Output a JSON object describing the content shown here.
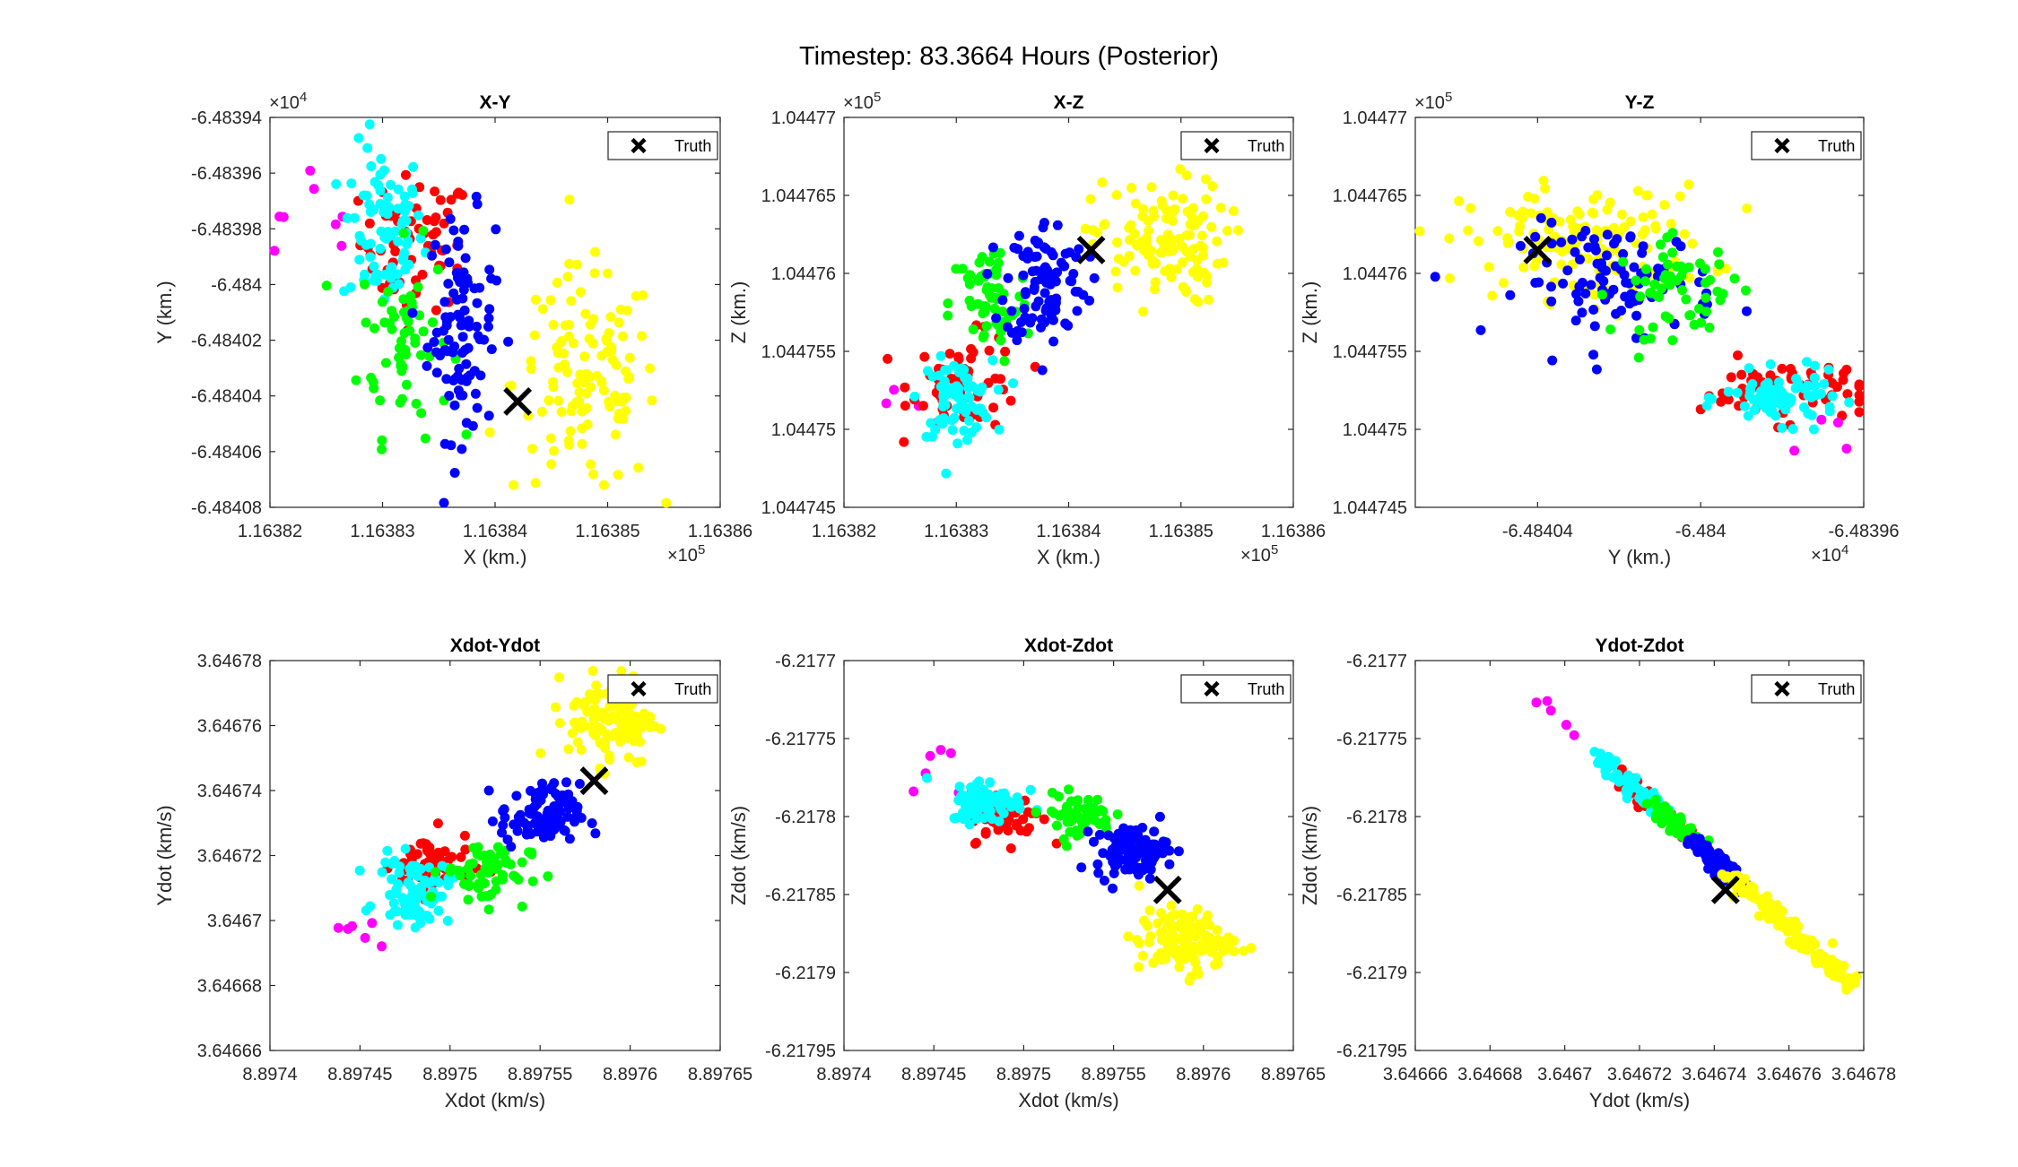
{
  "suptitle": "Timestep: 83.3664 Hours (Posterior)",
  "legend_label": "Truth",
  "cluster_colors": {
    "magenta": "#ff00ff",
    "cyan": "#00ffff",
    "red": "#ff0000",
    "green": "#00ff00",
    "blue": "#0000ff",
    "yellow": "#ffff00",
    "truth": "#000000"
  },
  "chart_data": [
    {
      "type": "scatter",
      "title": "X-Y",
      "xlabel": "X (km.)",
      "ylabel": "Y (km.)",
      "xlim": [
        116382,
        116386
      ],
      "ylim": [
        -64840.8,
        -64839.4
      ],
      "xticks": [
        "1.16382",
        "1.16383",
        "1.16384",
        "1.16385",
        "1.16386"
      ],
      "yticks": [
        "-6.48394",
        "-6.48396",
        "-6.48398",
        "-6.484",
        "-6.48402",
        "-6.48404",
        "-6.48406",
        "-6.48408"
      ],
      "x_exponent": "10^5",
      "y_exponent": "10^4",
      "legend": "top-right",
      "truth": [
        116384.2,
        -64840.42
      ],
      "clusters": [
        {
          "color": "magenta",
          "cx": 116382.5,
          "cy": -64839.8,
          "sx": 0.35,
          "sy": 0.15,
          "n": 8,
          "shape": "gauss"
        },
        {
          "color": "red",
          "cx": 116383.3,
          "cy": -64839.85,
          "sx": 0.25,
          "sy": 0.12,
          "n": 60,
          "shape": "gauss"
        },
        {
          "color": "cyan",
          "cx": 116383.0,
          "cy": -64839.8,
          "sx": 0.18,
          "sy": 0.15,
          "n": 80,
          "shape": "gauss"
        },
        {
          "color": "green",
          "cx": 116383.2,
          "cy": -64840.2,
          "sx": 0.2,
          "sy": 0.17,
          "n": 60,
          "shape": "gauss"
        },
        {
          "color": "blue",
          "cx": 116383.7,
          "cy": -64840.15,
          "sx": 0.15,
          "sy": 0.2,
          "n": 100,
          "shape": "gauss"
        },
        {
          "color": "yellow",
          "cx": 116384.8,
          "cy": -64840.35,
          "sx": 0.32,
          "sy": 0.2,
          "n": 120,
          "shape": "gauss"
        }
      ]
    },
    {
      "type": "scatter",
      "title": "X-Z",
      "xlabel": "X (km.)",
      "ylabel": "Z (km.)",
      "xlim": [
        116382,
        116386
      ],
      "ylim": [
        104474.5,
        104477.0
      ],
      "xticks": [
        "1.16382",
        "1.16383",
        "1.16384",
        "1.16385",
        "1.16386"
      ],
      "yticks": [
        "1.04477",
        "1.044765",
        "1.04476",
        "1.044755",
        "1.04475",
        "1.044745"
      ],
      "x_exponent": "10^5",
      "y_exponent": "10^5",
      "legend": "top-right",
      "truth": [
        116384.2,
        104476.15
      ],
      "clusters": [
        {
          "color": "magenta",
          "cx": 116382.6,
          "cy": 104475.05,
          "sx": 0.3,
          "sy": 0.15,
          "n": 6,
          "shape": "gauss"
        },
        {
          "color": "red",
          "cx": 116383.1,
          "cy": 104475.3,
          "sx": 0.25,
          "sy": 0.15,
          "n": 60,
          "shape": "gauss"
        },
        {
          "color": "cyan",
          "cx": 116383.0,
          "cy": 104475.2,
          "sx": 0.16,
          "sy": 0.12,
          "n": 80,
          "shape": "gauss"
        },
        {
          "color": "green",
          "cx": 116383.3,
          "cy": 104475.8,
          "sx": 0.18,
          "sy": 0.2,
          "n": 60,
          "shape": "gauss"
        },
        {
          "color": "blue",
          "cx": 116383.8,
          "cy": 104475.95,
          "sx": 0.18,
          "sy": 0.2,
          "n": 100,
          "shape": "gauss"
        },
        {
          "color": "yellow",
          "cx": 116384.8,
          "cy": 104476.2,
          "sx": 0.3,
          "sy": 0.2,
          "n": 120,
          "shape": "gauss"
        }
      ]
    },
    {
      "type": "scatter",
      "title": "Y-Z",
      "xlabel": "Y (km.)",
      "ylabel": "Z (km.)",
      "xlim": [
        -64840.7,
        -64839.6
      ],
      "ylim": [
        104474.5,
        104477.0
      ],
      "xticks": [
        "-6.48404",
        "-6.484",
        "-6.48396"
      ],
      "xtick_values": [
        -64840.4,
        -64840.0,
        -64839.6
      ],
      "yticks": [
        "1.04477",
        "1.044765",
        "1.04476",
        "1.044755",
        "1.04475",
        "1.044745"
      ],
      "x_exponent": "10^4",
      "y_exponent": "10^5",
      "legend": "top-right",
      "truth": [
        -64840.4,
        104476.15
      ],
      "clusters": [
        {
          "color": "yellow",
          "cx": -64840.28,
          "cy": 104476.2,
          "sx": 0.15,
          "sy": 0.18,
          "n": 140,
          "shape": "gauss"
        },
        {
          "color": "blue",
          "cx": -64840.2,
          "cy": 104475.95,
          "sx": 0.12,
          "sy": 0.18,
          "n": 100,
          "shape": "gauss"
        },
        {
          "color": "green",
          "cx": -64840.05,
          "cy": 104475.9,
          "sx": 0.08,
          "sy": 0.15,
          "n": 60,
          "shape": "gauss"
        },
        {
          "color": "red",
          "cx": -64839.8,
          "cy": 104475.25,
          "sx": 0.1,
          "sy": 0.1,
          "n": 60,
          "shape": "gauss"
        },
        {
          "color": "cyan",
          "cx": -64839.8,
          "cy": 104475.2,
          "sx": 0.07,
          "sy": 0.08,
          "n": 80,
          "shape": "gauss"
        },
        {
          "color": "magenta",
          "cx": -64839.7,
          "cy": 104475.0,
          "sx": 0.06,
          "sy": 0.1,
          "n": 4,
          "shape": "gauss"
        }
      ]
    },
    {
      "type": "scatter",
      "title": "Xdot-Ydot",
      "xlabel": "Xdot (km/s)",
      "ylabel": "Ydot (km/s)",
      "xlim": [
        8.8974,
        8.89765
      ],
      "ylim": [
        3.64666,
        3.64678
      ],
      "xticks": [
        "8.8974",
        "8.89745",
        "8.8975",
        "8.89755",
        "8.8976",
        "8.89765"
      ],
      "yticks": [
        "3.64678",
        "3.64676",
        "3.64674",
        "3.64672",
        "3.6467",
        "3.64668",
        "3.64666"
      ],
      "legend": "top-right",
      "truth": [
        8.89758,
        3.646743
      ],
      "clusters": [
        {
          "color": "magenta",
          "cx": 8.89745,
          "cy": 3.646692,
          "sx": 1.5e-05,
          "sy": 7e-06,
          "n": 6,
          "shape": "gauss"
        },
        {
          "color": "red",
          "cx": 8.89749,
          "cy": 3.646717,
          "sx": 1.1e-05,
          "sy": 5e-06,
          "n": 60,
          "shape": "gauss"
        },
        {
          "color": "cyan",
          "cx": 8.89748,
          "cy": 3.646709,
          "sx": 1e-05,
          "sy": 5e-06,
          "n": 80,
          "shape": "gauss"
        },
        {
          "color": "green",
          "cx": 8.89752,
          "cy": 3.646715,
          "sx": 1.2e-05,
          "sy": 5e-06,
          "n": 60,
          "shape": "gauss"
        },
        {
          "color": "blue",
          "cx": 8.89755,
          "cy": 3.646732,
          "sx": 1.1e-05,
          "sy": 5e-06,
          "n": 100,
          "shape": "gauss"
        },
        {
          "color": "yellow",
          "cx": 8.89759,
          "cy": 3.646762,
          "sx": 1.2e-05,
          "sy": 7e-06,
          "n": 120,
          "shape": "gauss"
        }
      ]
    },
    {
      "type": "scatter",
      "title": "Xdot-Zdot",
      "xlabel": "Xdot (km/s)",
      "ylabel": "Zdot (km/s)",
      "xlim": [
        8.8974,
        8.89765
      ],
      "ylim": [
        -6.21795,
        -6.2177
      ],
      "xticks": [
        "8.8974",
        "8.89745",
        "8.8975",
        "8.89755",
        "8.8976",
        "8.89765"
      ],
      "yticks": [
        "-6.2177",
        "-6.21775",
        "-6.2178",
        "-6.21785",
        "-6.2179",
        "-6.21795"
      ],
      "legend": "top-right",
      "truth": [
        8.89758,
        -6.217847
      ],
      "clusters": [
        {
          "color": "magenta",
          "cx": 8.89745,
          "cy": -6.21775,
          "sx": 1e-05,
          "sy": 2e-05,
          "n": 6,
          "shape": "gauss"
        },
        {
          "color": "red",
          "cx": 8.89749,
          "cy": -6.2178,
          "sx": 1e-05,
          "sy": 8e-06,
          "n": 60,
          "shape": "gauss"
        },
        {
          "color": "cyan",
          "cx": 8.89748,
          "cy": -6.21779,
          "sx": 1e-05,
          "sy": 7e-06,
          "n": 80,
          "shape": "gauss"
        },
        {
          "color": "green",
          "cx": 8.89753,
          "cy": -6.2178,
          "sx": 1e-05,
          "sy": 7e-06,
          "n": 60,
          "shape": "gauss"
        },
        {
          "color": "blue",
          "cx": 8.89756,
          "cy": -6.217822,
          "sx": 1e-05,
          "sy": 8e-06,
          "n": 100,
          "shape": "gauss"
        },
        {
          "color": "yellow",
          "cx": 8.89759,
          "cy": -6.21788,
          "sx": 1.3e-05,
          "sy": 1e-05,
          "n": 120,
          "shape": "gauss"
        }
      ]
    },
    {
      "type": "scatter",
      "title": "Ydot-Zdot",
      "xlabel": "Ydot (km/s)",
      "ylabel": "Zdot (km/s)",
      "xlim": [
        3.64666,
        3.64678
      ],
      "ylim": [
        -6.21795,
        -6.2177
      ],
      "xticks": [
        "3.64666",
        "3.64668",
        "3.6467",
        "3.64672",
        "3.64674",
        "3.64676",
        "3.64678"
      ],
      "yticks": [
        "-6.2177",
        "-6.21775",
        "-6.2178",
        "-6.21785",
        "-6.2179",
        "-6.21795"
      ],
      "legend": "top-right",
      "truth": [
        3.646743,
        -6.217847
      ],
      "diag_ref": [
        [
          3.64669,
          -6.21772
        ],
        [
          3.646778,
          -6.21791
        ]
      ],
      "clusters": [
        {
          "color": "magenta",
          "t0": 0.0,
          "t1": 0.15,
          "w": 1.2e-06,
          "n": 6,
          "shape": "line"
        },
        {
          "color": "red",
          "t0": 0.28,
          "t1": 0.5,
          "w": 1.5e-06,
          "n": 60,
          "shape": "line"
        },
        {
          "color": "cyan",
          "t0": 0.22,
          "t1": 0.42,
          "w": 1.5e-06,
          "n": 80,
          "shape": "line"
        },
        {
          "color": "green",
          "t0": 0.38,
          "t1": 0.5,
          "w": 1.5e-06,
          "n": 60,
          "shape": "line"
        },
        {
          "color": "blue",
          "t0": 0.5,
          "t1": 0.66,
          "w": 1.5e-06,
          "n": 100,
          "shape": "line"
        },
        {
          "color": "yellow",
          "t0": 0.62,
          "t1": 1.0,
          "w": 1.5e-06,
          "n": 120,
          "shape": "line"
        }
      ]
    }
  ]
}
